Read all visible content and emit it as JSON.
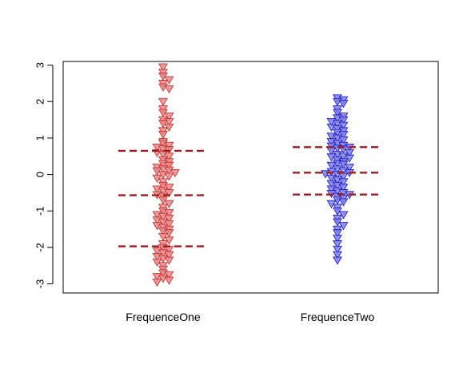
{
  "chart_data": {
    "type": "scatter",
    "title": "",
    "xlabel": "",
    "ylabel": "",
    "categories": [
      "FrequenceOne",
      "FrequenceTwo"
    ],
    "ylim": [
      -3.25,
      3.1
    ],
    "yticks": [
      -3,
      -2,
      -1,
      0,
      1,
      2,
      3
    ],
    "marker": "filled down-pointing triangle",
    "grid": false,
    "series": [
      {
        "category": "FrequenceOne",
        "color": "#cc3333",
        "fill": "#e38a8a",
        "reference_lines": [
          0.65,
          -0.57,
          -1.97
        ],
        "reference_line_color": "#a01c1c",
        "values": [
          2.95,
          2.8,
          2.7,
          2.6,
          2.5,
          2.4,
          2.35,
          2.0,
          1.8,
          1.7,
          1.6,
          1.5,
          1.45,
          1.4,
          1.3,
          1.2,
          1.1,
          0.9,
          0.85,
          0.8,
          0.75,
          0.7,
          0.68,
          0.6,
          0.55,
          0.5,
          0.4,
          0.35,
          0.3,
          0.25,
          0.2,
          0.15,
          0.12,
          0.1,
          0.05,
          0.0,
          -0.05,
          -0.1,
          -0.2,
          -0.3,
          -0.35,
          -0.4,
          -0.45,
          -0.5,
          -0.55,
          -0.6,
          -0.7,
          -0.8,
          -0.9,
          -1.0,
          -1.05,
          -1.1,
          -1.15,
          -1.2,
          -1.25,
          -1.3,
          -1.35,
          -1.4,
          -1.45,
          -1.5,
          -1.55,
          -1.6,
          -1.7,
          -1.8,
          -1.9,
          -2.0,
          -2.05,
          -2.1,
          -2.15,
          -2.2,
          -2.25,
          -2.3,
          -2.35,
          -2.4,
          -2.5,
          -2.6,
          -2.7,
          -2.75,
          -2.8,
          -2.85,
          -2.9,
          -2.95
        ]
      },
      {
        "category": "FrequenceTwo",
        "color": "#2222cc",
        "fill": "#8080e6",
        "reference_lines": [
          0.75,
          0.05,
          -0.55
        ],
        "reference_line_color": "#a01c1c",
        "values": [
          2.1,
          2.05,
          2.0,
          1.95,
          1.8,
          1.7,
          1.6,
          1.55,
          1.5,
          1.45,
          1.4,
          1.35,
          1.3,
          1.25,
          1.2,
          1.15,
          1.1,
          1.05,
          1.0,
          0.95,
          0.9,
          0.85,
          0.8,
          0.78,
          0.75,
          0.72,
          0.7,
          0.65,
          0.6,
          0.55,
          0.5,
          0.48,
          0.45,
          0.4,
          0.35,
          0.3,
          0.28,
          0.25,
          0.2,
          0.15,
          0.1,
          0.08,
          0.05,
          0.02,
          0.0,
          -0.05,
          -0.1,
          -0.15,
          -0.2,
          -0.25,
          -0.3,
          -0.35,
          -0.4,
          -0.45,
          -0.5,
          -0.52,
          -0.55,
          -0.6,
          -0.65,
          -0.7,
          -0.75,
          -0.8,
          -0.9,
          -1.0,
          -1.1,
          -1.2,
          -1.3,
          -1.4,
          -1.5,
          -1.6,
          -1.75,
          -1.9,
          -2.05,
          -2.2,
          -2.35
        ]
      }
    ]
  }
}
